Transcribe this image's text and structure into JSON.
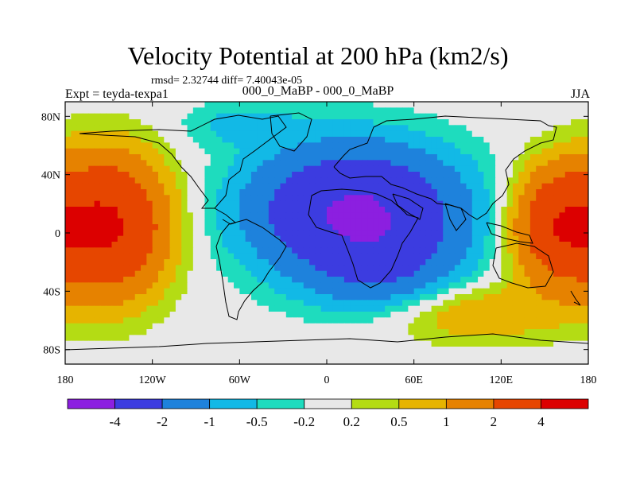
{
  "chart_data": {
    "type": "heatmap",
    "title": "Velocity Potential at 200 hPa (km2/s)",
    "stats": "rmsd= 2.32744 diff= 7.40043e-05",
    "left_label": "Expt = teyda-texpa1",
    "center_label": "000_0_MaBP - 000_0_MaBP",
    "right_label": "JJA",
    "x_ticks": [
      "180",
      "120W",
      "60W",
      "0",
      "60E",
      "120E",
      "180"
    ],
    "x_tick_values": [
      -180,
      -120,
      -60,
      0,
      60,
      120,
      180
    ],
    "y_ticks": [
      "80N",
      "40N",
      "0",
      "40S",
      "80S"
    ],
    "y_tick_values": [
      80,
      40,
      0,
      -40,
      -80
    ],
    "xlim": [
      -180,
      180
    ],
    "ylim": [
      -90,
      90
    ],
    "colorbar_levels": [
      "-4",
      "-2",
      "-1",
      "-0.5",
      "-0.2",
      "0.2",
      "0.5",
      "1",
      "2",
      "4"
    ],
    "colorbar_colors": [
      "#8c1fe0",
      "#3c3ce0",
      "#1e82dc",
      "#12b9e6",
      "#1edcbe",
      "#e8e8e8",
      "#b4dc14",
      "#e6b400",
      "#e68200",
      "#e64600",
      "#dc0000"
    ],
    "features": [
      {
        "name": "minimum",
        "lon": 20,
        "lat": 15,
        "value": -4.2
      },
      {
        "name": "maximum-pacific",
        "lon": -150,
        "lat": 5,
        "value": 4.2
      },
      {
        "name": "maximum-west-pacific",
        "lon": 160,
        "lat": 5,
        "value": 3.5
      }
    ]
  }
}
